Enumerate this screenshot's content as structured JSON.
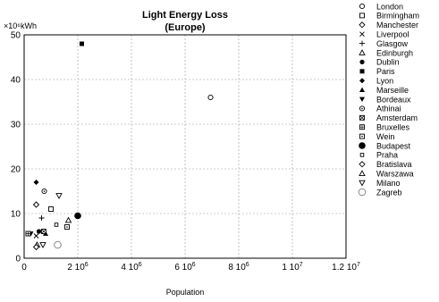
{
  "chart_data": {
    "type": "scatter",
    "title": "Light Energy Loss",
    "subtitle": "(Europe)",
    "xlabel": "Population",
    "ylabel": "×10⁶kWh",
    "xlim": [
      0,
      12000000
    ],
    "ylim": [
      0,
      50
    ],
    "grid": true,
    "legend_position": "right",
    "x_ticks": [
      {
        "value": 0,
        "base": "0",
        "exp": ""
      },
      {
        "value": 2000000,
        "base": "2 10",
        "exp": "6"
      },
      {
        "value": 4000000,
        "base": "4 10",
        "exp": "6"
      },
      {
        "value": 6000000,
        "base": "6 10",
        "exp": "6"
      },
      {
        "value": 8000000,
        "base": "8 10",
        "exp": "6"
      },
      {
        "value": 10000000,
        "base": "1 10",
        "exp": "7"
      },
      {
        "value": 12000000,
        "base": "1.2 10",
        "exp": "7"
      }
    ],
    "y_ticks": [
      "0",
      "10",
      "20",
      "30",
      "40",
      "50"
    ],
    "series": [
      {
        "name": "London",
        "marker": "circle-open",
        "points": [
          [
            6950000,
            36
          ]
        ]
      },
      {
        "name": "Birmingham",
        "marker": "square-open",
        "points": [
          [
            1000000,
            11
          ]
        ]
      },
      {
        "name": "Manchester",
        "marker": "diamond-open",
        "points": [
          [
            450000,
            12
          ]
        ]
      },
      {
        "name": "Liverpool",
        "marker": "x",
        "points": [
          [
            450000,
            5
          ]
        ]
      },
      {
        "name": "Glasgow",
        "marker": "plus",
        "points": [
          [
            650000,
            9
          ]
        ]
      },
      {
        "name": "Edinburgh",
        "marker": "triangle-open",
        "points": [
          [
            480000,
            3
          ]
        ]
      },
      {
        "name": "Dublin",
        "marker": "circle-filled",
        "points": [
          [
            550000,
            6
          ]
        ]
      },
      {
        "name": "Paris",
        "marker": "square-filled",
        "points": [
          [
            2150000,
            48
          ]
        ]
      },
      {
        "name": "Lyon",
        "marker": "diamond-filled",
        "points": [
          [
            450000,
            17
          ]
        ]
      },
      {
        "name": "Marseille",
        "marker": "triangle-filled",
        "points": [
          [
            800000,
            5.5
          ]
        ]
      },
      {
        "name": "Bordeaux",
        "marker": "triangle-down-filled",
        "points": [
          [
            250000,
            5.5
          ]
        ]
      },
      {
        "name": "Athinai",
        "marker": "circle-dot",
        "points": [
          [
            750000,
            15
          ]
        ]
      },
      {
        "name": "Amsterdam",
        "marker": "square-x",
        "points": [
          [
            730000,
            6
          ]
        ]
      },
      {
        "name": "Bruxelles",
        "marker": "square-plus",
        "points": [
          [
            150000,
            5.5
          ]
        ]
      },
      {
        "name": "Wein",
        "marker": "square-dot",
        "points": [
          [
            1600000,
            7
          ]
        ]
      },
      {
        "name": "Budapest",
        "marker": "circle-filled-large",
        "points": [
          [
            2000000,
            9.5
          ]
        ]
      },
      {
        "name": "Praha",
        "marker": "square-small-open",
        "points": [
          [
            1200000,
            7.5
          ]
        ]
      },
      {
        "name": "Bratislava",
        "marker": "diamond-open",
        "points": [
          [
            450000,
            2.5
          ]
        ]
      },
      {
        "name": "Warszawa",
        "marker": "triangle-open",
        "points": [
          [
            1650000,
            8.5
          ]
        ]
      },
      {
        "name": "Milano",
        "marker": "triangle-down-open",
        "points": [
          [
            1300000,
            14
          ],
          [
            700000,
            3
          ]
        ]
      },
      {
        "name": "Zagreb",
        "marker": "circle-open-gray",
        "points": [
          [
            1250000,
            3
          ]
        ]
      }
    ]
  }
}
